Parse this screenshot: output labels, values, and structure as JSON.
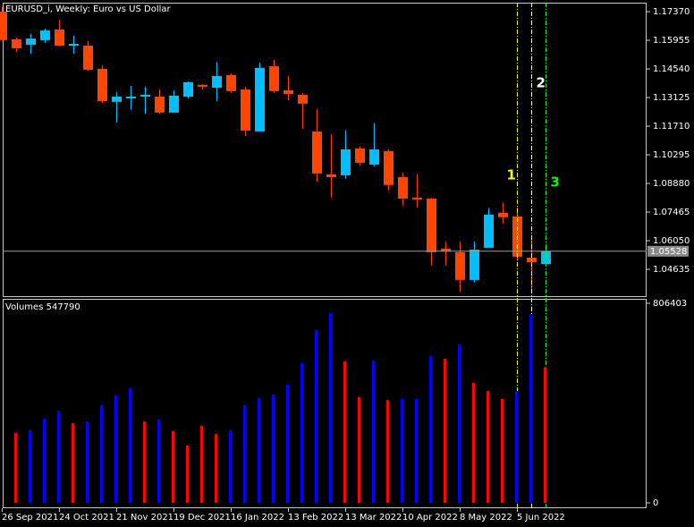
{
  "chart_data": [
    {
      "type": "candlestick",
      "title": "EURUSD_i, Weekly:  Euro vs US Dollar",
      "categories": [
        "26 Sep 2021",
        null,
        null,
        null,
        "24 Oct 2021",
        null,
        null,
        null,
        "21 Nov 2021",
        null,
        null,
        null,
        "19 Dec 2021",
        null,
        null,
        null,
        "16 Jan 2022",
        null,
        null,
        null,
        "13 Feb 2022",
        null,
        null,
        null,
        "13 Mar 2022",
        null,
        null,
        null,
        "10 Apr 2022",
        null,
        null,
        null,
        "8 May 2022",
        null,
        null,
        null,
        "5 Jun 2022",
        null,
        null
      ],
      "open": [
        1.1737,
        1.16,
        1.1573,
        1.1596,
        1.1649,
        1.1569,
        1.1569,
        1.1454,
        1.1291,
        1.1308,
        1.1317,
        1.1317,
        1.1238,
        1.1317,
        1.1375,
        1.1361,
        1.1423,
        1.1352,
        1.1145,
        1.1467,
        1.1348,
        1.1326,
        1.1145,
        1.0933,
        1.0928,
        1.1061,
        1.0981,
        1.1048,
        1.0919,
        1.0818,
        1.0813,
        1.0566,
        1.0548,
        1.0411,
        1.057,
        1.0743,
        1.0725,
        1.0521,
        1.049
      ],
      "high": [
        1.1759,
        1.1609,
        1.1627,
        1.1653,
        1.1697,
        1.1618,
        1.1591,
        1.1472,
        1.1339,
        1.137,
        1.1366,
        1.1352,
        1.1348,
        1.1392,
        1.1379,
        1.1489,
        1.1432,
        1.1366,
        1.1485,
        1.1498,
        1.1419,
        1.1335,
        1.1255,
        1.1131,
        1.1149,
        1.107,
        1.1184,
        1.1056,
        1.0941,
        1.0933,
        1.0818,
        1.0601,
        1.0601,
        1.0601,
        1.0765,
        1.0791,
        1.0769,
        1.0614,
        1.0575
      ],
      "low": [
        1.1596,
        1.1538,
        1.1529,
        1.1582,
        1.1565,
        1.1529,
        1.1445,
        1.1286,
        1.1189,
        1.1251,
        1.1233,
        1.1233,
        1.1238,
        1.1308,
        1.1352,
        1.1295,
        1.1335,
        1.1123,
        1.1145,
        1.1335,
        1.1299,
        1.1158,
        1.0897,
        1.0818,
        1.091,
        1.0977,
        1.0972,
        1.0853,
        1.0778,
        1.0769,
        1.0482,
        1.0482,
        1.0353,
        1.0398,
        1.057,
        1.069,
        1.0513,
        1.0353,
        1.049
      ],
      "close": [
        1.1596,
        1.1556,
        1.1604,
        1.1644,
        1.1569,
        1.1578,
        1.145,
        1.1295,
        1.1317,
        1.1317,
        1.1326,
        1.1238,
        1.1322,
        1.1388,
        1.1366,
        1.1419,
        1.1344,
        1.1149,
        1.1459,
        1.1344,
        1.133,
        1.1282,
        1.0937,
        1.0919,
        1.1056,
        1.099,
        1.1056,
        1.088,
        1.0813,
        1.0809,
        1.0548,
        1.0552,
        1.0411,
        1.0561,
        1.0734,
        1.0721,
        1.0526,
        1.0499,
        1.0553
      ],
      "up_color": "#00bfff",
      "down_color": "#ff4500",
      "ylim": [
        1.03264,
        1.17812
      ],
      "yticks": [
        {
          "value": 1.1737,
          "label": "1.17370"
        },
        {
          "value": 1.15955,
          "label": "1.15955"
        },
        {
          "value": 1.1454,
          "label": "1.14540"
        },
        {
          "value": 1.13125,
          "label": "1.13125"
        },
        {
          "value": 1.1171,
          "label": "1.11710"
        },
        {
          "value": 1.10295,
          "label": "1.10295"
        },
        {
          "value": 1.0888,
          "label": "1.08880"
        },
        {
          "value": 1.07465,
          "label": "1.07465"
        },
        {
          "value": 1.0605,
          "label": "1.06050"
        },
        {
          "value": 1.04635,
          "label": "1.04635"
        }
      ],
      "current_price": 1.05528,
      "annotations": [
        {
          "text": "1",
          "color": "#ffff00"
        },
        {
          "text": "2",
          "color": "#ffffff"
        },
        {
          "text": "3",
          "color": "#00ff00"
        }
      ]
    },
    {
      "type": "bar",
      "title": "Volumes",
      "values": [
        null,
        282000,
        292900,
        339900,
        372500,
        321800,
        329100,
        394200,
        433900,
        462900,
        329100,
        336300,
        289300,
        231400,
        311000,
        278400,
        292900,
        394200,
        423100,
        437600,
        477300,
        564100,
        697900,
        766600,
        571400,
        426700,
        575000,
        415900,
        419500,
        419500,
        593100,
        582200,
        640100,
        484600,
        452000,
        419500,
        452000,
        763000,
        547790
      ],
      "colors": [
        null,
        "#ff0000",
        "#0000ff",
        "#0000ff",
        "#0000ff",
        "#ff0000",
        "#0000ff",
        "#0000ff",
        "#0000ff",
        "#0000ff",
        "#ff0000",
        "#0000ff",
        "#ff0000",
        "#ff0000",
        "#ff0000",
        "#ff0000",
        "#0000ff",
        "#0000ff",
        "#0000ff",
        "#0000ff",
        "#0000ff",
        "#0000ff",
        "#0000ff",
        "#0000ff",
        "#ff0000",
        "#ff0000",
        "#0000ff",
        "#ff0000",
        "#0000ff",
        "#0000ff",
        "#0000ff",
        "#ff0000",
        "#0000ff",
        "#ff0000",
        "#ff0000",
        "#ff0000",
        "#0000ff",
        "#0000ff",
        "#ff0000"
      ],
      "ylim": [
        -21700,
        820900
      ],
      "yticks": [
        0,
        806403
      ]
    }
  ]
}
